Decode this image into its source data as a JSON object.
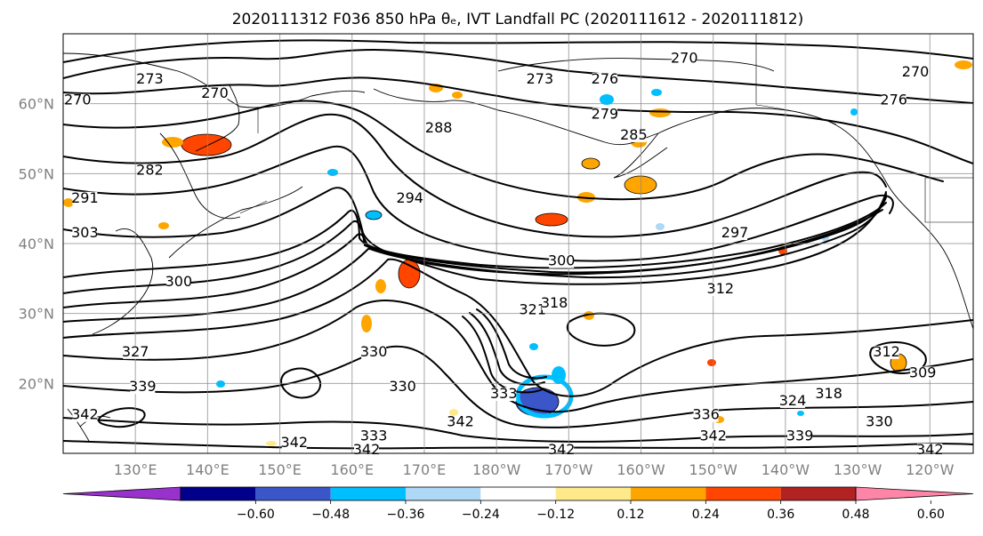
{
  "title": "2020111312 F036 850 hPa θₑ, IVT Landfall PC (2020111612 - 2020111812)",
  "latitude_labels": [
    "60°N",
    "50°N",
    "40°N",
    "30°N",
    "20°N"
  ],
  "longitude_labels": [
    "130°E",
    "140°E",
    "150°E",
    "160°E",
    "170°E",
    "180°W",
    "170°W",
    "160°W",
    "150°W",
    "140°W",
    "130°W",
    "120°W"
  ],
  "colorbar": {
    "colors": [
      "#9932cc",
      "#00008b",
      "#3a56c8",
      "#00bfff",
      "#add8f6",
      "#ffffff",
      "#ffe98a",
      "#ffa500",
      "#ff4500",
      "#b22222",
      "#ff85a8"
    ],
    "tick_labels": [
      "−0.60",
      "−0.48",
      "−0.36",
      "−0.24",
      "−0.12",
      "0.12",
      "0.24",
      "0.36",
      "0.48",
      "0.60"
    ]
  },
  "contour_labels": [
    {
      "text": "273",
      "lon": 132,
      "lat": 63
    },
    {
      "text": "270",
      "lon": 122,
      "lat": 60
    },
    {
      "text": "270",
      "lon": 141,
      "lat": 61
    },
    {
      "text": "273",
      "lon": -174,
      "lat": 63
    },
    {
      "text": "276",
      "lon": -165,
      "lat": 63
    },
    {
      "text": "270",
      "lon": -154,
      "lat": 66
    },
    {
      "text": "270",
      "lon": -122,
      "lat": 64
    },
    {
      "text": "276",
      "lon": -125,
      "lat": 60
    },
    {
      "text": "279",
      "lon": -165,
      "lat": 58
    },
    {
      "text": "288",
      "lon": 172,
      "lat": 56
    },
    {
      "text": "285",
      "lon": -161,
      "lat": 55
    },
    {
      "text": "282",
      "lon": 132,
      "lat": 50
    },
    {
      "text": "291",
      "lon": 123,
      "lat": 46
    },
    {
      "text": "294",
      "lon": 168,
      "lat": 46
    },
    {
      "text": "303",
      "lon": 123,
      "lat": 41
    },
    {
      "text": "297",
      "lon": -147,
      "lat": 41
    },
    {
      "text": "300",
      "lon": -171,
      "lat": 37
    },
    {
      "text": "300",
      "lon": 136,
      "lat": 34
    },
    {
      "text": "312",
      "lon": -149,
      "lat": 33
    },
    {
      "text": "321",
      "lon": -175,
      "lat": 30
    },
    {
      "text": "318",
      "lon": -172,
      "lat": 31
    },
    {
      "text": "327",
      "lon": 130,
      "lat": 24
    },
    {
      "text": "330",
      "lon": 163,
      "lat": 24
    },
    {
      "text": "312",
      "lon": -126,
      "lat": 24
    },
    {
      "text": "309",
      "lon": -121,
      "lat": 21
    },
    {
      "text": "339",
      "lon": 131,
      "lat": 19
    },
    {
      "text": "330",
      "lon": 167,
      "lat": 19
    },
    {
      "text": "333",
      "lon": -179,
      "lat": 18
    },
    {
      "text": "318",
      "lon": -134,
      "lat": 18
    },
    {
      "text": "324",
      "lon": -139,
      "lat": 17
    },
    {
      "text": "342",
      "lon": 123,
      "lat": 15
    },
    {
      "text": "333",
      "lon": 163,
      "lat": 12
    },
    {
      "text": "342",
      "lon": 175,
      "lat": 14
    },
    {
      "text": "336",
      "lon": -151,
      "lat": 15
    },
    {
      "text": "330",
      "lon": -127,
      "lat": 14
    },
    {
      "text": "342",
      "lon": 152,
      "lat": 11
    },
    {
      "text": "342",
      "lon": 162,
      "lat": 10
    },
    {
      "text": "342",
      "lon": -171,
      "lat": 10
    },
    {
      "text": "342",
      "lon": -150,
      "lat": 12
    },
    {
      "text": "339",
      "lon": -138,
      "lat": 12
    },
    {
      "text": "342",
      "lon": -120,
      "lat": 10
    }
  ]
}
